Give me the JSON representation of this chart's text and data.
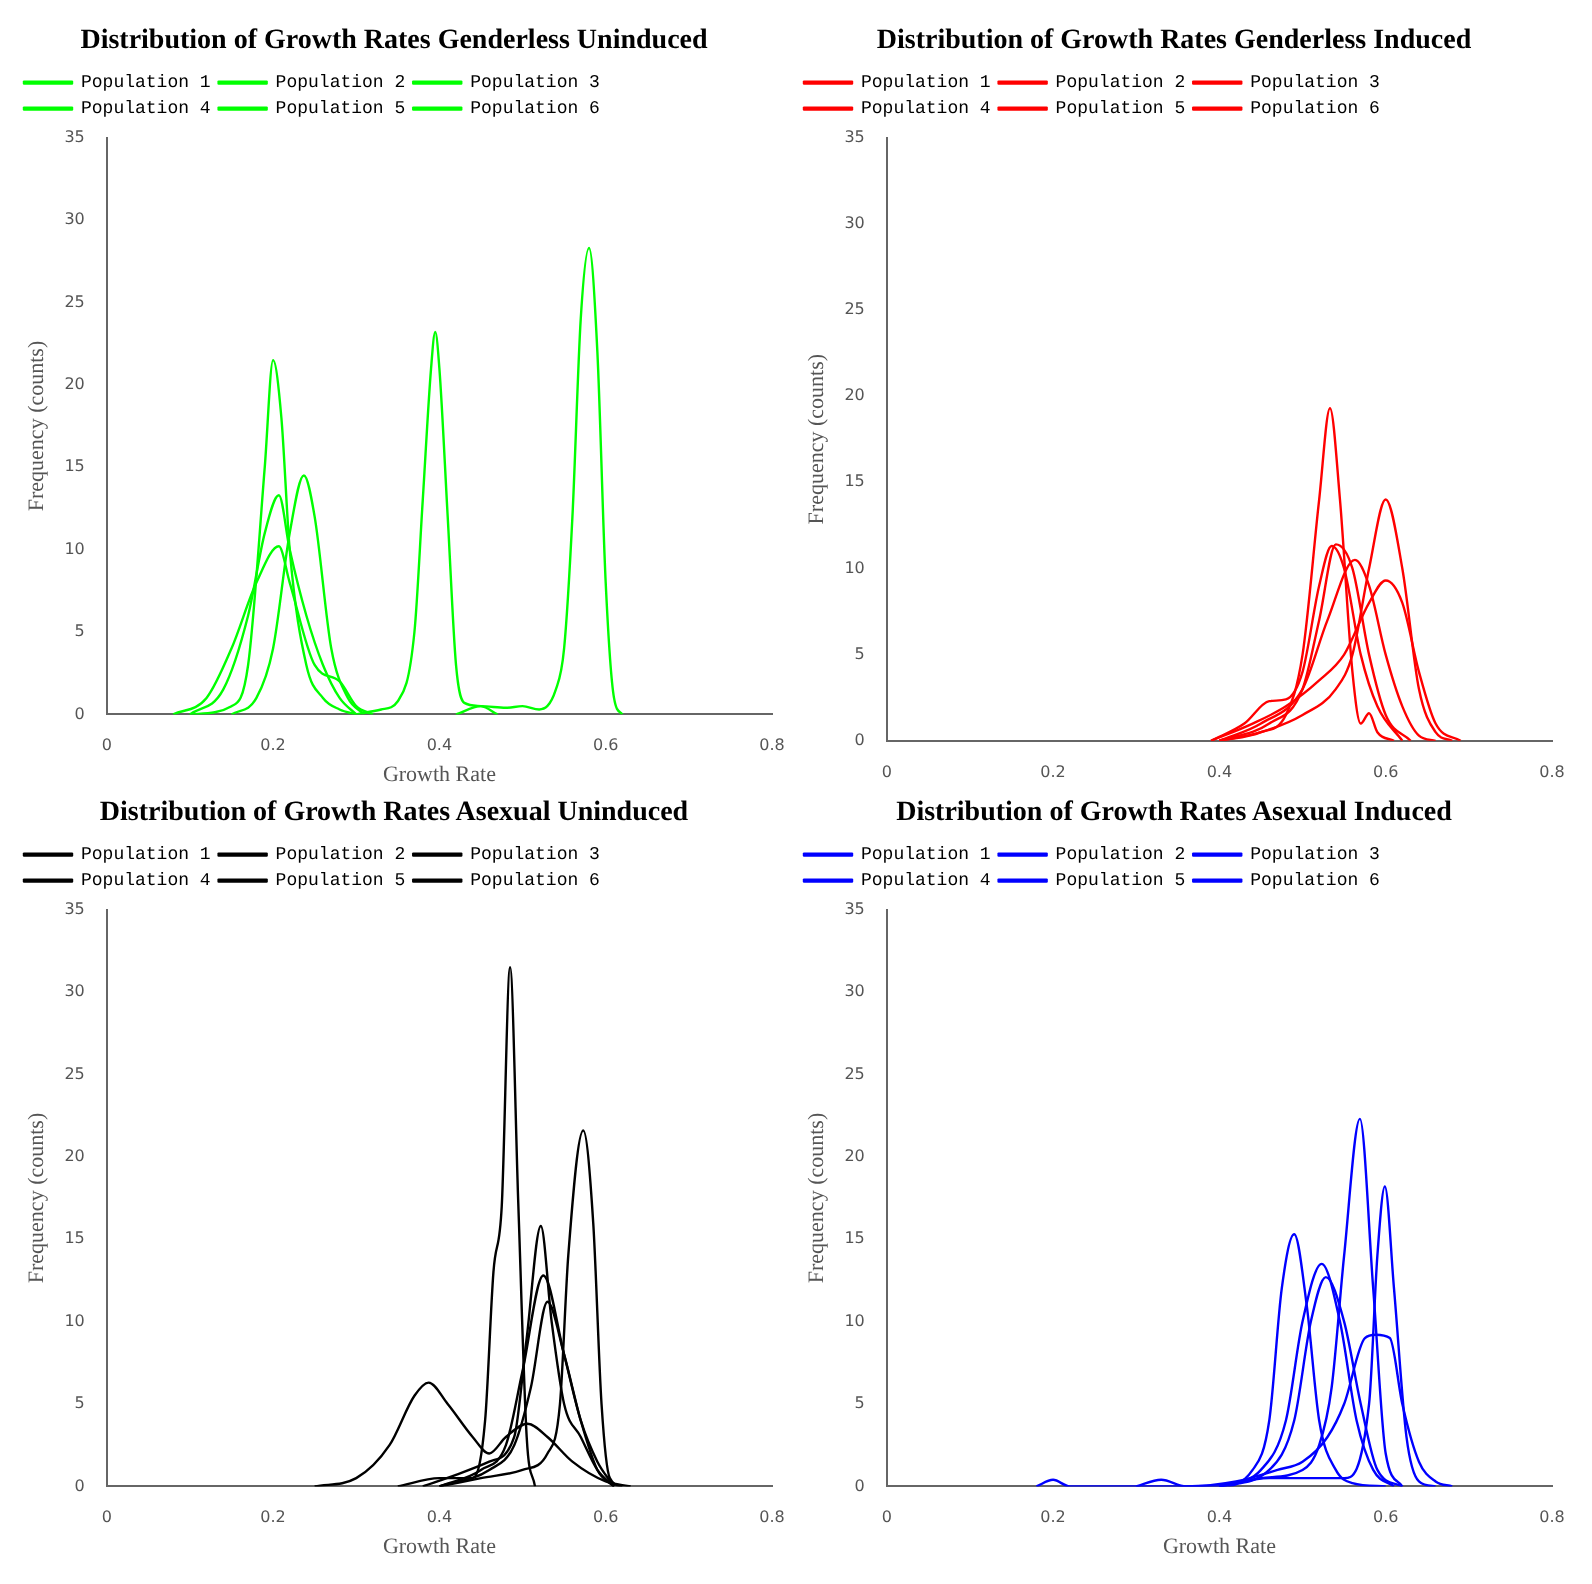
{
  "chart_data": [
    {
      "type": "line",
      "title": "Distribution of Growth Rates Genderless Uninduced",
      "xlabel": "Growth Rate",
      "ylabel": "Frequency (counts)",
      "xlim": [
        0,
        0.8
      ],
      "xticks": [
        0,
        0.2,
        0.4,
        0.6,
        0.8
      ],
      "ylim": [
        0,
        35
      ],
      "yticks": [
        0,
        5,
        10,
        15,
        20,
        25,
        30,
        35
      ],
      "legend": "top left",
      "series": [
        {
          "name": "Population 1",
          "color": "#00ff00",
          "x": [
            0.42,
            0.45,
            0.48,
            0.5,
            0.52,
            0.54,
            0.55,
            0.56,
            0.57,
            0.58,
            0.59,
            0.6,
            0.61,
            0.62
          ],
          "values": [
            0,
            0.5,
            0.4,
            0.5,
            0.3,
            1.5,
            4,
            12,
            24,
            28.3,
            22,
            8,
            1,
            0
          ]
        },
        {
          "name": "Population 2",
          "color": "#00ff00",
          "x": [
            0.3,
            0.33,
            0.35,
            0.37,
            0.38,
            0.39,
            0.395,
            0.4,
            0.41,
            0.42,
            0.43,
            0.45,
            0.47
          ],
          "values": [
            0,
            0.3,
            0.8,
            5,
            13,
            21,
            23.2,
            21,
            12,
            3,
            0.7,
            0.5,
            0
          ]
        },
        {
          "name": "Population 3",
          "color": "#00ff00",
          "x": [
            0.1,
            0.15,
            0.17,
            0.19,
            0.2,
            0.21,
            0.22,
            0.24,
            0.26,
            0.28,
            0.3
          ],
          "values": [
            0,
            0.5,
            3,
            15,
            21.5,
            18,
            10,
            3,
            1,
            0.3,
            0
          ]
        },
        {
          "name": "Population 4",
          "color": "#00ff00",
          "x": [
            0.15,
            0.18,
            0.2,
            0.22,
            0.237,
            0.25,
            0.27,
            0.29,
            0.31
          ],
          "values": [
            0,
            1,
            4,
            11,
            14.5,
            12,
            4,
            1,
            0
          ]
        },
        {
          "name": "Population 5",
          "color": "#00ff00",
          "x": [
            0.1,
            0.14,
            0.17,
            0.19,
            0.207,
            0.22,
            0.24,
            0.26,
            0.28,
            0.3
          ],
          "values": [
            0,
            1.5,
            6,
            11,
            13.3,
            10,
            6,
            3,
            1,
            0
          ]
        },
        {
          "name": "Population 6",
          "color": "#00ff00",
          "x": [
            0.08,
            0.12,
            0.15,
            0.18,
            0.207,
            0.22,
            0.25,
            0.28,
            0.3,
            0.32
          ],
          "values": [
            0,
            1,
            4,
            8,
            10.2,
            8,
            3,
            2,
            0.5,
            0
          ]
        }
      ]
    },
    {
      "type": "line",
      "title": "Distribution of Growth Rates Genderless Induced",
      "ylabel": "Frequency (counts)",
      "xlim": [
        0,
        0.8
      ],
      "xticks": [
        0,
        0.2,
        0.4,
        0.6,
        0.8
      ],
      "ylim": [
        0,
        35
      ],
      "yticks": [
        0,
        5,
        10,
        15,
        20,
        25,
        30,
        35
      ],
      "legend": "top left",
      "series": [
        {
          "name": "Population 1",
          "color": "#ff0000",
          "x": [
            0.4,
            0.45,
            0.48,
            0.5,
            0.52,
            0.533,
            0.545,
            0.56,
            0.57,
            0.58,
            0.59,
            0.61
          ],
          "values": [
            0,
            0.5,
            1.5,
            5,
            14,
            19.3,
            14,
            4,
            1,
            1.6,
            0.5,
            0
          ]
        },
        {
          "name": "Population 2",
          "color": "#ff0000",
          "x": [
            0.4,
            0.45,
            0.5,
            0.54,
            0.56,
            0.58,
            0.6,
            0.62,
            0.64,
            0.66,
            0.68
          ],
          "values": [
            0,
            0.5,
            1.5,
            3,
            5,
            10,
            14,
            10,
            3,
            0.5,
            0
          ]
        },
        {
          "name": "Population 3",
          "color": "#ff0000",
          "x": [
            0.39,
            0.44,
            0.48,
            0.52,
            0.55,
            0.58,
            0.6,
            0.62,
            0.64,
            0.66,
            0.69
          ],
          "values": [
            0,
            1,
            2,
            3.5,
            5,
            8,
            9.3,
            8,
            4,
            1,
            0
          ]
        },
        {
          "name": "Population 4",
          "color": "#ff0000",
          "x": [
            0.4,
            0.45,
            0.5,
            0.53,
            0.563,
            0.58,
            0.6,
            0.62,
            0.64,
            0.66
          ],
          "values": [
            0,
            1,
            3,
            7,
            10.5,
            9,
            5,
            2,
            0.3,
            0
          ]
        },
        {
          "name": "Population 5",
          "color": "#ff0000",
          "x": [
            0.39,
            0.43,
            0.46,
            0.48,
            0.5,
            0.52,
            0.535,
            0.55,
            0.57,
            0.59,
            0.62
          ],
          "values": [
            0,
            1,
            2.3,
            2.4,
            4,
            9,
            11.3,
            10,
            5,
            2,
            0
          ]
        },
        {
          "name": "Population 6",
          "color": "#ff0000",
          "x": [
            0.4,
            0.46,
            0.5,
            0.52,
            0.54,
            0.56,
            0.58,
            0.6,
            0.63
          ],
          "values": [
            0,
            1,
            3,
            7,
            11.4,
            10,
            5,
            1.5,
            0
          ]
        }
      ]
    },
    {
      "type": "line",
      "title": "Distribution of Growth Rates Asexual Uninduced",
      "xlabel": "Growth Rate",
      "ylabel": "Frequency (counts)",
      "xlim": [
        0,
        0.8
      ],
      "xticks": [
        0,
        0.2,
        0.4,
        0.6,
        0.8
      ],
      "ylim": [
        0,
        35
      ],
      "yticks": [
        0,
        5,
        10,
        15,
        20,
        25,
        30,
        35
      ],
      "legend": "top left",
      "series": [
        {
          "name": "Population 1",
          "color": "#000000",
          "x": [
            0.35,
            0.4,
            0.44,
            0.455,
            0.465,
            0.475,
            0.485,
            0.495,
            0.505,
            0.515
          ],
          "values": [
            0,
            0.5,
            0.5,
            4,
            13,
            17,
            31.5,
            17,
            3,
            0
          ]
        },
        {
          "name": "Population 2",
          "color": "#000000",
          "x": [
            0.4,
            0.45,
            0.5,
            0.53,
            0.545,
            0.555,
            0.573,
            0.585,
            0.595,
            0.605,
            0.62
          ],
          "values": [
            0,
            0.5,
            1,
            2,
            5,
            14,
            21.6,
            16,
            5,
            0.5,
            0
          ]
        },
        {
          "name": "Population 3",
          "color": "#000000",
          "x": [
            0.38,
            0.42,
            0.46,
            0.49,
            0.505,
            0.522,
            0.535,
            0.55,
            0.57,
            0.59,
            0.61
          ],
          "values": [
            0,
            0.7,
            1.5,
            3,
            9,
            15.8,
            10,
            5,
            3,
            1,
            0
          ]
        },
        {
          "name": "Population 4",
          "color": "#000000",
          "x": [
            0.4,
            0.45,
            0.48,
            0.5,
            0.525,
            0.55,
            0.57,
            0.59,
            0.61
          ],
          "values": [
            0,
            1,
            2.5,
            7,
            12.8,
            8,
            4,
            1.5,
            0
          ]
        },
        {
          "name": "Population 5",
          "color": "#000000",
          "x": [
            0.4,
            0.46,
            0.49,
            0.51,
            0.53,
            0.55,
            0.57,
            0.59,
            0.61
          ],
          "values": [
            0,
            1,
            2.5,
            6,
            11.2,
            8,
            4,
            1,
            0
          ]
        },
        {
          "name": "Population 6",
          "color": "#000000",
          "x": [
            0.25,
            0.3,
            0.34,
            0.37,
            0.387,
            0.41,
            0.44,
            0.46,
            0.48,
            0.506,
            0.53,
            0.56,
            0.6,
            0.63
          ],
          "values": [
            0,
            0.5,
            2.5,
            5.5,
            6.3,
            5,
            3,
            2,
            3,
            3.8,
            3,
            1.5,
            0.3,
            0
          ]
        }
      ]
    },
    {
      "type": "line",
      "title": "Distribution of Growth Rates Asexual Induced",
      "xlabel": "Growth Rate",
      "ylabel": "Frequency (counts)",
      "xlim": [
        0,
        0.8
      ],
      "xticks": [
        0,
        0.2,
        0.4,
        0.6,
        0.8
      ],
      "ylim": [
        0,
        35
      ],
      "yticks": [
        0,
        5,
        10,
        15,
        20,
        25,
        30,
        35
      ],
      "legend": "top left",
      "series": [
        {
          "name": "Population 1",
          "color": "#0000ff",
          "x": [
            0.4,
            0.45,
            0.5,
            0.52,
            0.535,
            0.55,
            0.569,
            0.585,
            0.6,
            0.62
          ],
          "values": [
            0,
            0.5,
            1,
            2.5,
            6,
            14,
            22.3,
            12,
            2,
            0
          ]
        },
        {
          "name": "Population 2",
          "color": "#0000ff",
          "x": [
            0.4,
            0.46,
            0.5,
            0.55,
            0.58,
            0.59,
            0.599,
            0.61,
            0.625,
            0.64,
            0.66
          ],
          "values": [
            0,
            0.5,
            0.5,
            0.5,
            5,
            14,
            18.2,
            12,
            3,
            0.3,
            0
          ]
        },
        {
          "name": "Population 3",
          "color": "#0000ff",
          "x": [
            0.18,
            0.2,
            0.22,
            0.4,
            0.44,
            0.46,
            0.475,
            0.49,
            0.505,
            0.52,
            0.54,
            0.56,
            0.6
          ],
          "values": [
            0,
            0.4,
            0,
            0,
            1,
            4,
            12,
            15.3,
            11,
            4,
            1,
            0.2,
            0
          ]
        },
        {
          "name": "Population 4",
          "color": "#0000ff",
          "x": [
            0.4,
            0.45,
            0.48,
            0.5,
            0.523,
            0.545,
            0.565,
            0.585,
            0.61
          ],
          "values": [
            0,
            1,
            4,
            10,
            13.5,
            10,
            4,
            1,
            0
          ]
        },
        {
          "name": "Population 5",
          "color": "#0000ff",
          "x": [
            0.4,
            0.46,
            0.49,
            0.51,
            0.528,
            0.55,
            0.57,
            0.59,
            0.62
          ],
          "values": [
            0,
            1,
            4,
            10,
            12.7,
            10,
            5,
            1,
            0
          ]
        },
        {
          "name": "Population 6",
          "color": "#0000ff",
          "x": [
            0.3,
            0.33,
            0.36,
            0.42,
            0.47,
            0.5,
            0.53,
            0.55,
            0.575,
            0.588,
            0.605,
            0.62,
            0.64,
            0.66,
            0.68
          ],
          "values": [
            0,
            0.4,
            0,
            0.3,
            1,
            1.5,
            3,
            5,
            9,
            9.2,
            9,
            5,
            1.5,
            0.3,
            0
          ]
        }
      ]
    }
  ]
}
